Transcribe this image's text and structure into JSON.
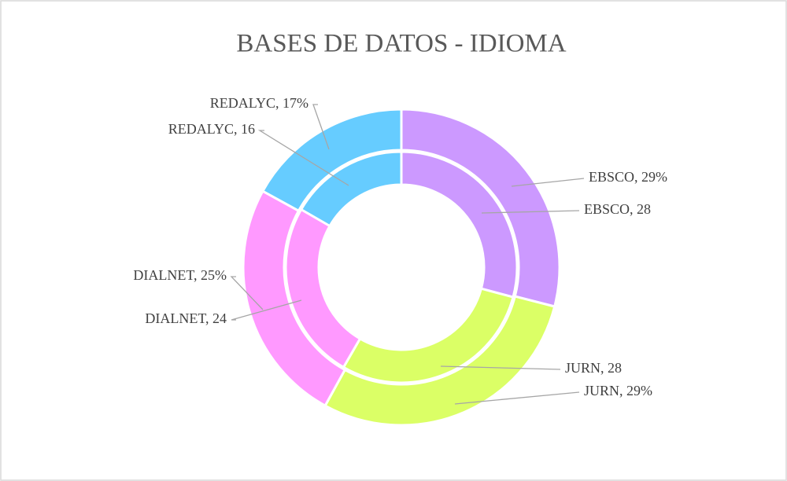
{
  "chart_data": {
    "type": "doughnut",
    "title": "BASES DE DATOS - IDIOMA",
    "categories": [
      "EBSCO",
      "JURN",
      "DIALNET",
      "REDALYC"
    ],
    "colors": [
      "#cc99ff",
      "#dbff66",
      "#ff99ff",
      "#66ccff"
    ],
    "series": [
      {
        "values": [
          28,
          28,
          24,
          16
        ],
        "value_labels": [
          "EBSCO, 28",
          "JURN, 28",
          "DIALNET, 24",
          "REDALYC, 16"
        ]
      },
      {
        "values": [
          29,
          29,
          25,
          17
        ],
        "value_labels": [
          "EBSCO, 29%",
          "JURN, 29%",
          "DIALNET, 25%",
          "REDALYC, 17%"
        ]
      }
    ]
  }
}
